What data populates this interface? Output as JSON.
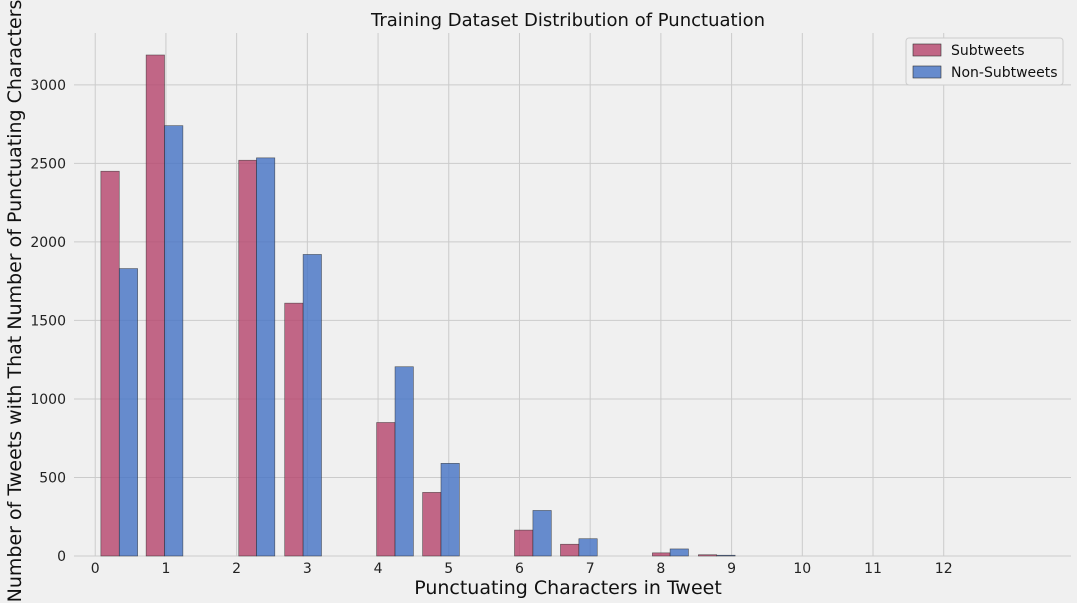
{
  "chart_data": {
    "type": "bar",
    "title": "Training Dataset Distribution of Punctuation",
    "xlabel": "Punctuating Characters in Tweet",
    "ylabel": "Number of Tweets with That Number of Punctuating Characters",
    "x_ticks": [
      0,
      1,
      2,
      3,
      4,
      5,
      6,
      7,
      8,
      9,
      10,
      11,
      12
    ],
    "y_ticks": [
      0,
      500,
      1000,
      1500,
      2000,
      2500,
      3000
    ],
    "xlim": [
      -0.3,
      13.8
    ],
    "ylim": [
      0,
      3330
    ],
    "grid": true,
    "legend_position": "top-right",
    "series": [
      {
        "name": "Subtweets",
        "color": "#b5446b",
        "bars": [
          {
            "x0": 0.08,
            "x1": 0.34,
            "value": 2450
          },
          {
            "x0": 0.72,
            "x1": 0.98,
            "value": 3190
          },
          {
            "x0": 2.03,
            "x1": 2.28,
            "value": 2520
          },
          {
            "x0": 2.68,
            "x1": 2.94,
            "value": 1610
          },
          {
            "x0": 3.98,
            "x1": 4.24,
            "value": 850
          },
          {
            "x0": 4.63,
            "x1": 4.89,
            "value": 405
          },
          {
            "x0": 5.93,
            "x1": 6.19,
            "value": 165
          },
          {
            "x0": 6.58,
            "x1": 6.84,
            "value": 75
          },
          {
            "x0": 7.88,
            "x1": 8.13,
            "value": 20
          },
          {
            "x0": 8.53,
            "x1": 8.79,
            "value": 8
          }
        ]
      },
      {
        "name": "Non-Subtweets",
        "color": "#4472c4",
        "bars": [
          {
            "x0": 0.34,
            "x1": 0.6,
            "value": 1830
          },
          {
            "x0": 0.98,
            "x1": 1.24,
            "value": 2740
          },
          {
            "x0": 2.28,
            "x1": 2.54,
            "value": 2535
          },
          {
            "x0": 2.94,
            "x1": 3.2,
            "value": 1920
          },
          {
            "x0": 4.24,
            "x1": 4.5,
            "value": 1205
          },
          {
            "x0": 4.89,
            "x1": 5.15,
            "value": 590
          },
          {
            "x0": 6.19,
            "x1": 6.45,
            "value": 290
          },
          {
            "x0": 6.84,
            "x1": 7.1,
            "value": 110
          },
          {
            "x0": 8.13,
            "x1": 8.39,
            "value": 45
          },
          {
            "x0": 8.79,
            "x1": 9.05,
            "value": 5
          }
        ]
      }
    ]
  }
}
